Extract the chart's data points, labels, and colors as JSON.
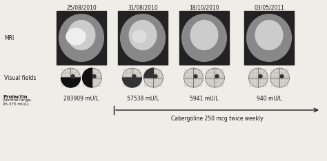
{
  "dates": [
    "25/08/2010",
    "31/08/2010",
    "18/10/2010",
    "03/05/2011"
  ],
  "prolactin_values": [
    "283909 mU/L",
    "57538 mU/L",
    "5941 mU/L",
    "940 mU/L"
  ],
  "prolactin_label": "Prolactin",
  "prolactin_normal": "(Normal range,\n45-375 mU/L)",
  "mri_label": "MRI",
  "vf_label": "Visual fields",
  "cabergoline_text": "Cabergoline 250 mcg twice weekly",
  "bg_color": "#f0ede8",
  "text_color": "#1a1a1a",
  "fig_width": 4.74,
  "fig_height": 2.34,
  "dpi": 100
}
